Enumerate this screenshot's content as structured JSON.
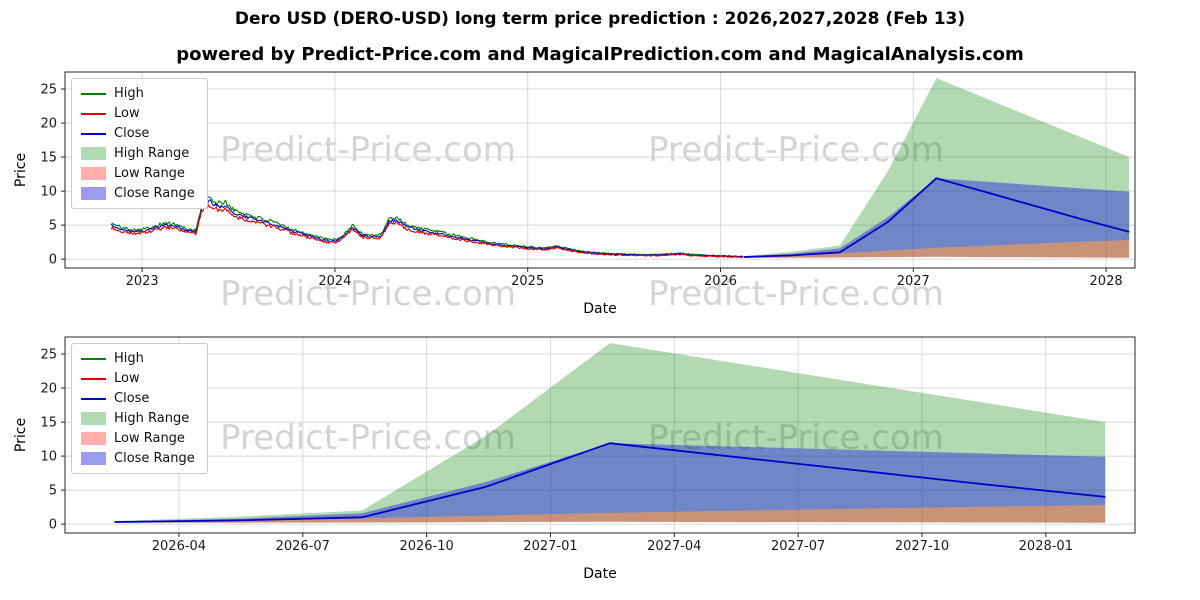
{
  "title": "Dero USD (DERO-USD) long term price prediction : 2026,2027,2028 (Feb 13)",
  "subtitle": "powered by Predict-Price.com and MagicalPrediction.com and MagicalAnalysis.com",
  "watermark": "Predict-Price.com",
  "colors": {
    "high_line": "#008000",
    "low_line": "#dd0000",
    "close_line": "#0000cc",
    "high_range_fill": "#008000",
    "low_range_fill": "#ff0000",
    "close_range_fill": "#2222dd",
    "grid": "#d8d8d8",
    "frame": "#262626",
    "watermark_gray": "#d4d4d4"
  },
  "fill_alpha": {
    "high_range": 0.3,
    "low_range": 0.32,
    "close_range": 0.45
  },
  "chart_data": [
    {
      "type": "line",
      "title": "",
      "xlabel": "Date",
      "ylabel": "Price",
      "xlim": [
        2022.6,
        2028.15
      ],
      "ylim": [
        -1.3,
        27.5
      ],
      "grid": true,
      "legend_position": "upper left",
      "y_ticks": [
        0,
        5,
        10,
        15,
        20,
        25
      ],
      "x_ticks": [
        {
          "v": 2023,
          "label": "2023"
        },
        {
          "v": 2024,
          "label": "2024"
        },
        {
          "v": 2025,
          "label": "2025"
        },
        {
          "v": 2026,
          "label": "2026"
        },
        {
          "v": 2027,
          "label": "2027"
        },
        {
          "v": 2028,
          "label": "2028"
        }
      ],
      "legend": [
        "High",
        "Low",
        "Close",
        "High Range",
        "Low Range",
        "Close Range"
      ],
      "history": {
        "x": [
          2022.84,
          2022.9,
          2022.96,
          2023.02,
          2023.08,
          2023.13,
          2023.18,
          2023.23,
          2023.28,
          2023.31,
          2023.35,
          2023.39,
          2023.43,
          2023.48,
          2023.53,
          2023.58,
          2023.63,
          2023.68,
          2023.73,
          2023.78,
          2023.83,
          2023.88,
          2023.93,
          2023.97,
          2024.01,
          2024.05,
          2024.09,
          2024.14,
          2024.19,
          2024.24,
          2024.28,
          2024.32,
          2024.37,
          2024.42,
          2024.47,
          2024.53,
          2024.6,
          2024.67,
          2024.75,
          2024.83,
          2024.92,
          2025.0,
          2025.08,
          2025.15,
          2025.22,
          2025.3,
          2025.38,
          2025.46,
          2025.55,
          2025.63,
          2025.7,
          2025.78,
          2025.85,
          2025.92,
          2026.0,
          2026.12
        ],
        "close": [
          4.9,
          4.3,
          4.05,
          4.2,
          4.7,
          5.0,
          4.7,
          4.2,
          4.0,
          7.5,
          8.5,
          7.7,
          7.9,
          6.7,
          6.3,
          5.9,
          5.5,
          5.1,
          4.6,
          4.1,
          3.7,
          3.3,
          2.9,
          2.65,
          2.7,
          3.4,
          4.7,
          3.5,
          3.3,
          3.4,
          5.5,
          5.8,
          4.8,
          4.4,
          4.1,
          3.8,
          3.4,
          3.0,
          2.6,
          2.2,
          1.9,
          1.7,
          1.5,
          1.8,
          1.35,
          1.0,
          0.8,
          0.7,
          0.63,
          0.6,
          0.62,
          0.8,
          0.62,
          0.52,
          0.45,
          0.33
        ]
      },
      "forecast": {
        "x": [
          2026.12,
          2026.37,
          2026.62,
          2026.87,
          2027.12,
          2027.37,
          2027.62,
          2027.87,
          2028.12
        ],
        "close": [
          0.32,
          0.55,
          1.0,
          5.5,
          11.9,
          9.9,
          7.9,
          5.9,
          4.0
        ],
        "high": [
          0.45,
          1.1,
          2.0,
          13.0,
          26.6,
          23.7,
          20.8,
          17.9,
          15.0
        ],
        "low": [
          0.2,
          0.22,
          0.25,
          0.3,
          0.35,
          0.3,
          0.28,
          0.25,
          0.22
        ],
        "close_upper": [
          0.4,
          0.8,
          1.6,
          6.2,
          11.9,
          11.4,
          10.9,
          10.4,
          9.9
        ],
        "close_lower": [
          0.28,
          0.5,
          0.85,
          1.25,
          1.65,
          1.95,
          2.25,
          2.55,
          2.8
        ]
      }
    },
    {
      "type": "line",
      "title": "",
      "xlabel": "Date",
      "ylabel": "Price",
      "xlim": [
        2026.02,
        2028.18
      ],
      "ylim": [
        -1.3,
        27.5
      ],
      "grid": true,
      "legend_position": "upper left",
      "y_ticks": [
        0,
        5,
        10,
        15,
        20,
        25
      ],
      "x_ticks": [
        {
          "v": 2026.25,
          "label": "2026-04"
        },
        {
          "v": 2026.5,
          "label": "2026-07"
        },
        {
          "v": 2026.75,
          "label": "2026-10"
        },
        {
          "v": 2027.0,
          "label": "2027-01"
        },
        {
          "v": 2027.25,
          "label": "2027-04"
        },
        {
          "v": 2027.5,
          "label": "2027-07"
        },
        {
          "v": 2027.75,
          "label": "2027-10"
        },
        {
          "v": 2028.0,
          "label": "2028-01"
        }
      ],
      "legend": [
        "High",
        "Low",
        "Close",
        "High Range",
        "Low Range",
        "Close Range"
      ]
    }
  ]
}
